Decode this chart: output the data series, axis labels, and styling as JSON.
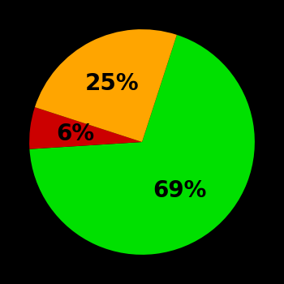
{
  "slices": [
    69,
    6,
    25
  ],
  "colors": [
    "#00e000",
    "#cc0000",
    "#ffa500"
  ],
  "labels": [
    "69%",
    "6%",
    "25%"
  ],
  "background_color": "#000000",
  "label_fontsize": 20,
  "label_color": "#000000",
  "startangle": 72,
  "label_radii": [
    0.55,
    0.6,
    0.58
  ]
}
